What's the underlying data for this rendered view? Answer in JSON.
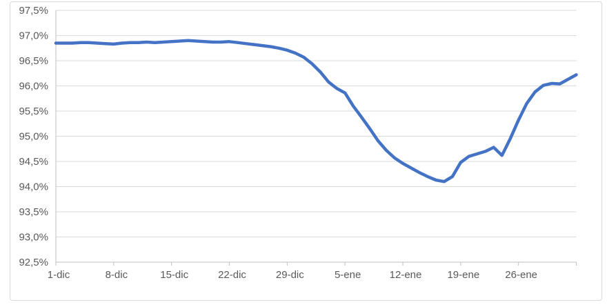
{
  "chart_data": {
    "type": "line",
    "title": "",
    "legend": "none",
    "grid": true,
    "ylim": [
      92.5,
      97.5
    ],
    "y_step": 0.5,
    "y_tick_labels": [
      "97,5%",
      "97,0%",
      "96,5%",
      "96,0%",
      "95,5%",
      "95,0%",
      "94,5%",
      "94,0%",
      "93,5%",
      "93,0%",
      "92,5%"
    ],
    "x_tick_labels": [
      "1-dic",
      "8-dic",
      "15-dic",
      "22-dic",
      "29-dic",
      "5-ene",
      "12-ene",
      "19-ene",
      "26-ene"
    ],
    "x_tick_interval": 7,
    "line_color": "#4472C4",
    "line_width": 4.5,
    "colors": {
      "grid": "#D9D9D9",
      "axis": "#BFBFBF",
      "label": "#595959",
      "border": "#D9D9D9",
      "background": "#FFFFFF"
    },
    "x": [
      "1-dic",
      "2-dic",
      "3-dic",
      "4-dic",
      "5-dic",
      "6-dic",
      "7-dic",
      "8-dic",
      "9-dic",
      "10-dic",
      "11-dic",
      "12-dic",
      "13-dic",
      "14-dic",
      "15-dic",
      "16-dic",
      "17-dic",
      "18-dic",
      "19-dic",
      "20-dic",
      "21-dic",
      "22-dic",
      "23-dic",
      "24-dic",
      "25-dic",
      "26-dic",
      "27-dic",
      "28-dic",
      "29-dic",
      "30-dic",
      "31-dic",
      "1-ene",
      "2-ene",
      "3-ene",
      "4-ene",
      "5-ene",
      "6-ene",
      "7-ene",
      "8-ene",
      "9-ene",
      "10-ene",
      "11-ene",
      "12-ene",
      "13-ene",
      "14-ene",
      "15-ene",
      "16-ene",
      "17-ene",
      "18-ene",
      "19-ene",
      "20-ene",
      "21-ene",
      "22-ene",
      "23-ene",
      "24-ene",
      "25-ene",
      "26-ene",
      "27-ene",
      "28-ene",
      "29-ene",
      "30-ene",
      "31-ene",
      "1-feb",
      "2-feb"
    ],
    "values": [
      96.85,
      96.85,
      96.85,
      96.86,
      96.86,
      96.85,
      96.84,
      96.83,
      96.85,
      96.86,
      96.86,
      96.87,
      96.86,
      96.87,
      96.88,
      96.89,
      96.9,
      96.89,
      96.88,
      96.87,
      96.87,
      96.88,
      96.86,
      96.84,
      96.82,
      96.8,
      96.78,
      96.75,
      96.71,
      96.65,
      96.57,
      96.44,
      96.28,
      96.08,
      95.95,
      95.86,
      95.6,
      95.38,
      95.15,
      94.91,
      94.72,
      94.57,
      94.46,
      94.37,
      94.28,
      94.2,
      94.13,
      94.1,
      94.2,
      94.48,
      94.6,
      94.65,
      94.7,
      94.78,
      94.62,
      94.95,
      95.32,
      95.65,
      95.88,
      96.01,
      96.05,
      96.04,
      96.13,
      96.22
    ]
  }
}
